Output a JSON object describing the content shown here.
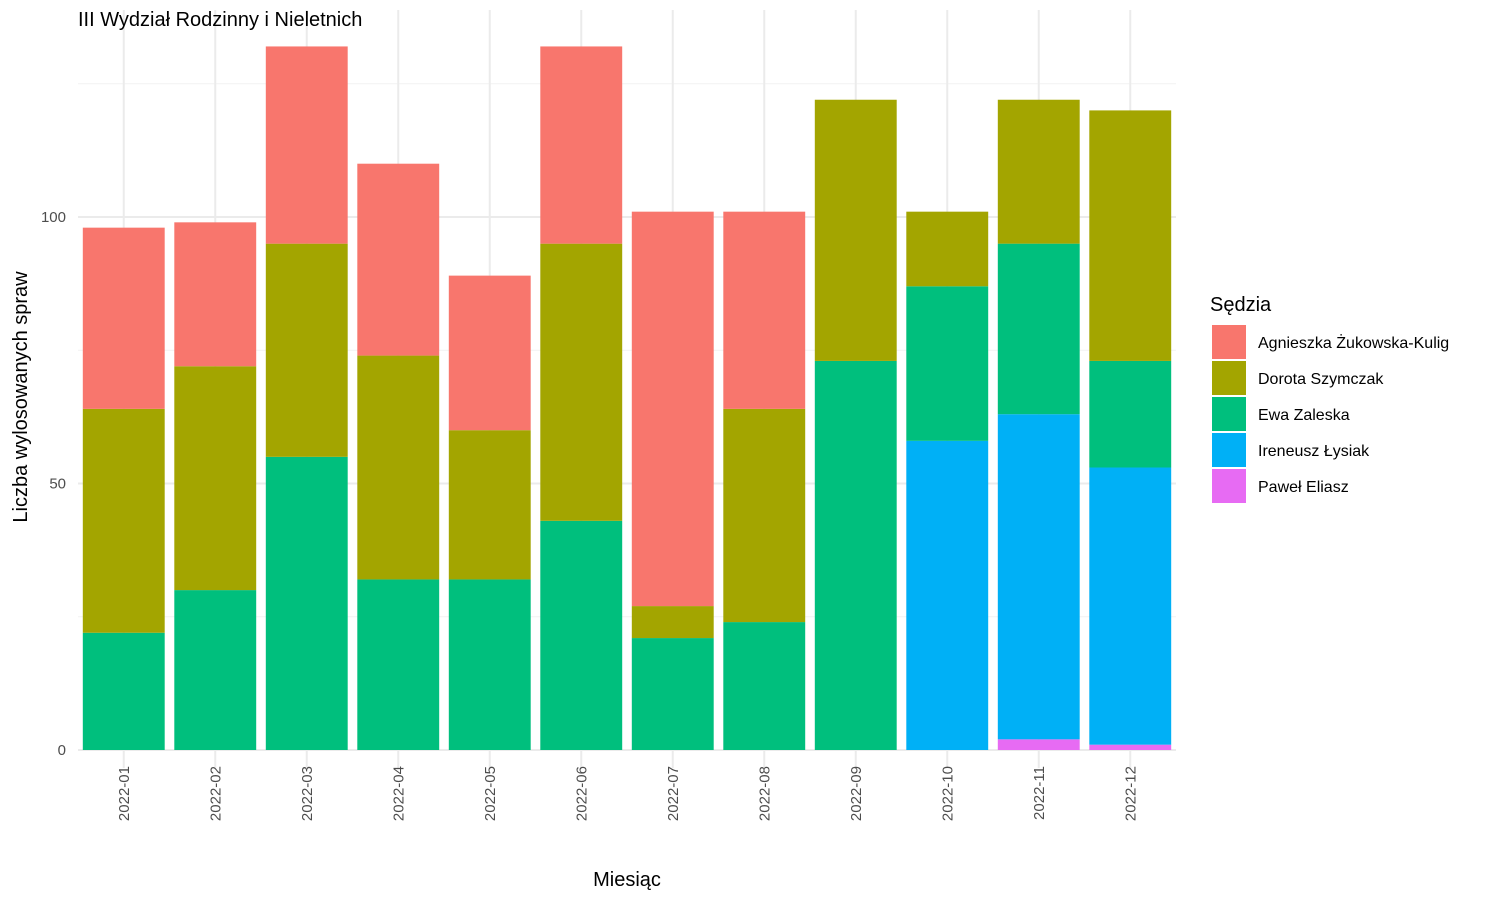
{
  "chart_data": {
    "type": "bar",
    "stacked": true,
    "title": "III Wydział Rodzinny i Nieletnich",
    "xlabel": "Miesiąc",
    "ylabel": "Liczba wylosowanych spraw",
    "ylim": [
      0,
      135
    ],
    "yticks": [
      0,
      50,
      100
    ],
    "grid": true,
    "legend_title": "Sędzia",
    "legend_position": "right",
    "categories": [
      "2022-01",
      "2022-02",
      "2022-03",
      "2022-04",
      "2022-05",
      "2022-06",
      "2022-07",
      "2022-08",
      "2022-09",
      "2022-10",
      "2022-11",
      "2022-12"
    ],
    "series": [
      {
        "name": "Agnieszka Żukowska-Kulig",
        "color": "#F8766D",
        "values": [
          34,
          27,
          37,
          36,
          29,
          37,
          74,
          37,
          0,
          0,
          0,
          0
        ]
      },
      {
        "name": "Dorota Szymczak",
        "color": "#A3A500",
        "values": [
          42,
          42,
          40,
          42,
          28,
          52,
          6,
          40,
          49,
          14,
          27,
          47
        ]
      },
      {
        "name": "Ewa Zaleska",
        "color": "#00BF7D",
        "values": [
          22,
          30,
          55,
          32,
          32,
          43,
          21,
          24,
          73,
          29,
          32,
          20
        ]
      },
      {
        "name": "Ireneusz Łysiak",
        "color": "#00B0F6",
        "values": [
          0,
          0,
          0,
          0,
          0,
          0,
          0,
          0,
          0,
          58,
          61,
          52
        ]
      },
      {
        "name": "Paweł Eliasz",
        "color": "#E76BF3",
        "values": [
          0,
          0,
          0,
          0,
          0,
          0,
          0,
          0,
          0,
          0,
          2,
          1
        ]
      }
    ]
  }
}
